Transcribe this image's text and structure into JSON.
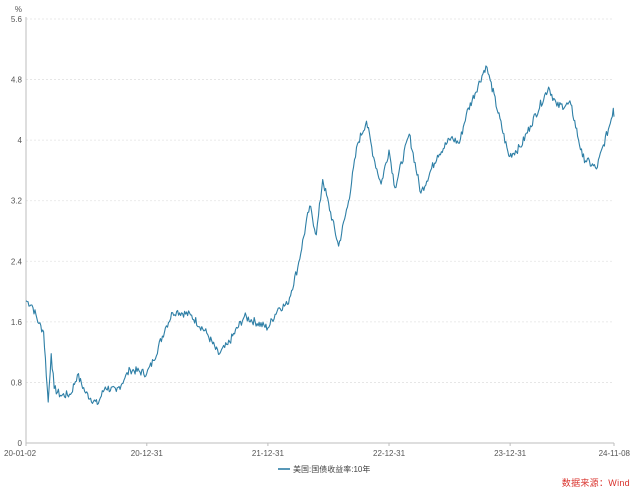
{
  "chart_data": {
    "type": "line",
    "unit": "%",
    "ylim": [
      0,
      5.6
    ],
    "yticks": [
      "0",
      "0.8",
      "1.6",
      "2.4",
      "3.2",
      "4",
      "4.8",
      "5.6"
    ],
    "xticks": [
      "20-01-02",
      "20-12-31",
      "21-12-31",
      "22-12-31",
      "23-12-31",
      "24-11-08"
    ],
    "xlim": [
      "2020-01-02",
      "2024-11-08"
    ],
    "grid": true,
    "legend_position": "bottom",
    "series": [
      {
        "name": "美国:国债收益率:10年",
        "color": "#2e7fa6",
        "points": [
          [
            "2020-01-02",
            1.88
          ],
          [
            "2020-01-20",
            1.82
          ],
          [
            "2020-02-10",
            1.58
          ],
          [
            "2020-02-24",
            1.47
          ],
          [
            "2020-03-06",
            0.74
          ],
          [
            "2020-03-09",
            0.54
          ],
          [
            "2020-03-18",
            1.18
          ],
          [
            "2020-03-27",
            0.72
          ],
          [
            "2020-04-15",
            0.63
          ],
          [
            "2020-05-15",
            0.64
          ],
          [
            "2020-06-05",
            0.9
          ],
          [
            "2020-06-30",
            0.66
          ],
          [
            "2020-08-04",
            0.51
          ],
          [
            "2020-08-28",
            0.74
          ],
          [
            "2020-09-30",
            0.68
          ],
          [
            "2020-10-26",
            0.86
          ],
          [
            "2020-11-11",
            0.97
          ],
          [
            "2020-12-31",
            0.92
          ],
          [
            "2021-01-20",
            1.09
          ],
          [
            "2021-02-25",
            1.52
          ],
          [
            "2021-03-19",
            1.72
          ],
          [
            "2021-03-31",
            1.74
          ],
          [
            "2021-05-12",
            1.69
          ],
          [
            "2021-06-30",
            1.45
          ],
          [
            "2021-08-04",
            1.17
          ],
          [
            "2021-09-01",
            1.3
          ],
          [
            "2021-10-21",
            1.67
          ],
          [
            "2021-12-31",
            1.52
          ],
          [
            "2022-01-31",
            1.78
          ],
          [
            "2022-02-28",
            1.83
          ],
          [
            "2022-03-31",
            2.32
          ],
          [
            "2022-05-06",
            3.13
          ],
          [
            "2022-05-26",
            2.75
          ],
          [
            "2022-06-14",
            3.48
          ],
          [
            "2022-08-01",
            2.6
          ],
          [
            "2022-08-31",
            3.19
          ],
          [
            "2022-09-27",
            3.95
          ],
          [
            "2022-10-24",
            4.25
          ],
          [
            "2022-11-15",
            3.77
          ],
          [
            "2022-12-07",
            3.42
          ],
          [
            "2022-12-31",
            3.87
          ],
          [
            "2023-01-18",
            3.37
          ],
          [
            "2023-03-02",
            4.08
          ],
          [
            "2023-04-06",
            3.3
          ],
          [
            "2023-05-26",
            3.8
          ],
          [
            "2023-07-06",
            4.03
          ],
          [
            "2023-07-31",
            3.96
          ],
          [
            "2023-08-21",
            4.34
          ],
          [
            "2023-10-19",
            4.98
          ],
          [
            "2023-11-01",
            4.79
          ],
          [
            "2023-12-27",
            3.79
          ],
          [
            "2024-01-31",
            3.91
          ],
          [
            "2024-03-01",
            4.19
          ],
          [
            "2024-04-25",
            4.7
          ],
          [
            "2024-05-20",
            4.45
          ],
          [
            "2024-07-01",
            4.47
          ],
          [
            "2024-08-05",
            3.78
          ],
          [
            "2024-09-16",
            3.62
          ],
          [
            "2024-10-31",
            4.28
          ],
          [
            "2024-11-06",
            4.42
          ],
          [
            "2024-11-08",
            4.31
          ]
        ]
      }
    ]
  },
  "source_text": "数据来源：Wind"
}
